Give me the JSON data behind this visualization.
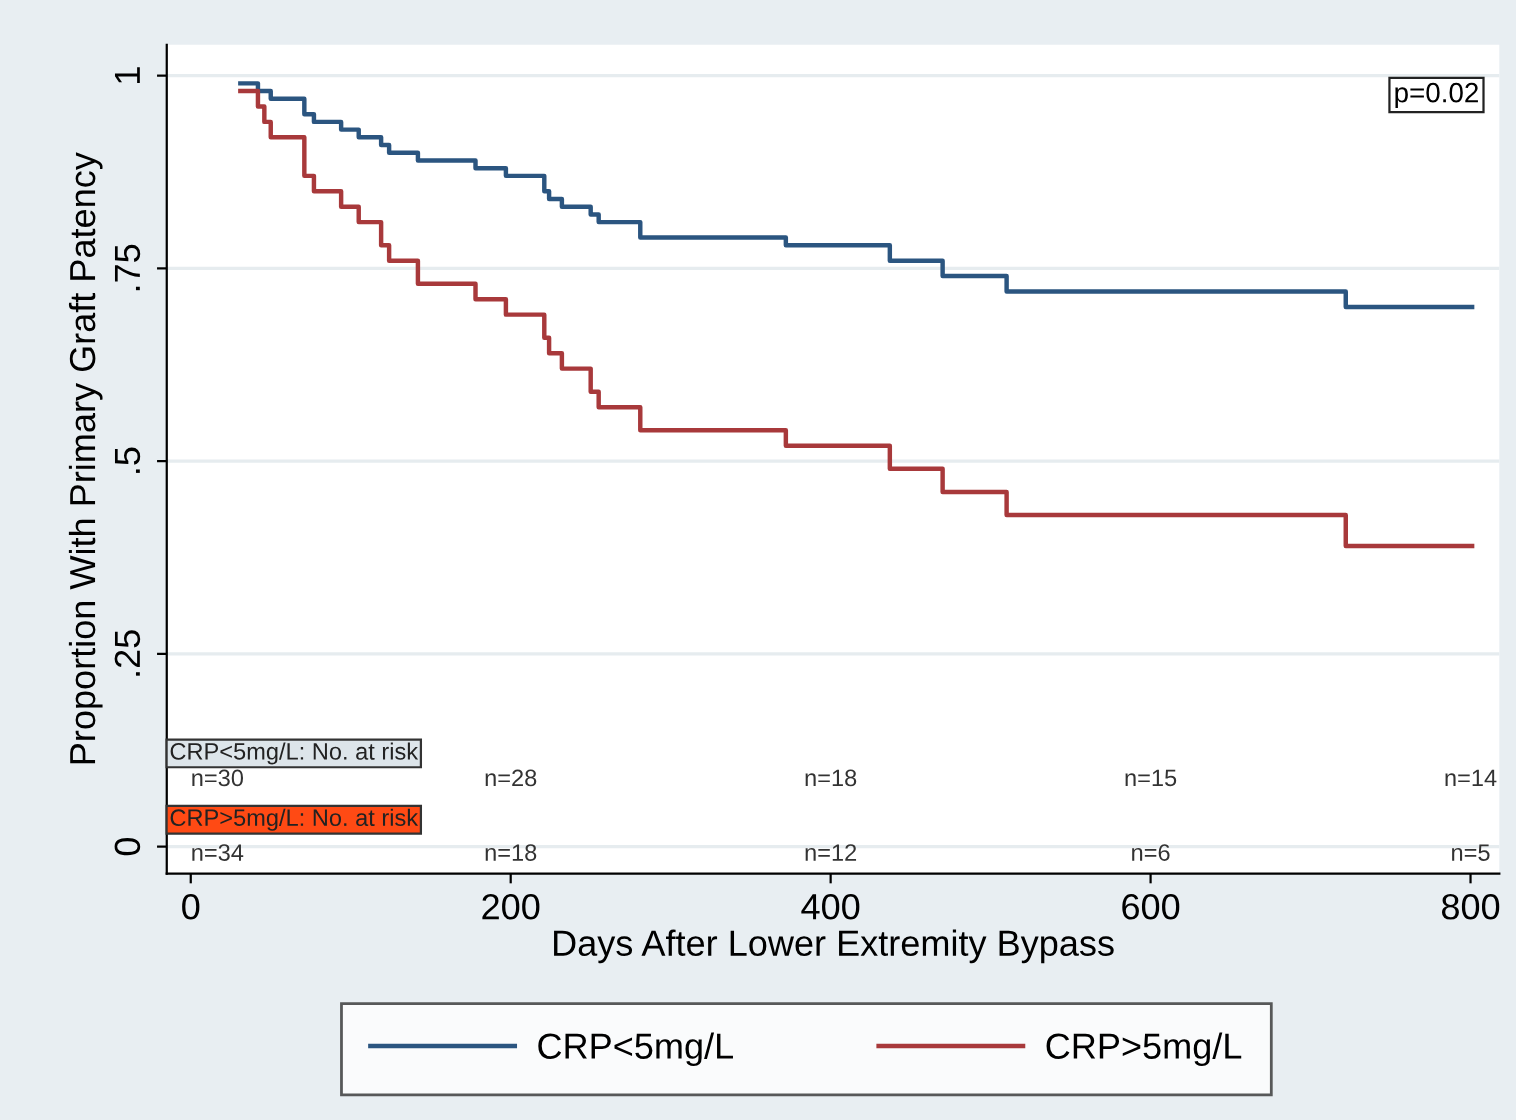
{
  "chart_data": {
    "type": "step",
    "xlabel": "Days After Lower Extremity Bypass",
    "ylabel": "Proportion With Primary Graft Patency",
    "xlim": [
      -15,
      818
    ],
    "ylim": [
      -0.035,
      1.04
    ],
    "xticks": [
      0,
      200,
      400,
      600,
      800
    ],
    "yticks": [
      {
        "value": 0,
        "label": "0"
      },
      {
        "value": 0.25,
        "label": ".25"
      },
      {
        "value": 0.5,
        "label": ".5"
      },
      {
        "value": 0.75,
        "label": ".75"
      },
      {
        "value": 1,
        "label": "1"
      }
    ],
    "grid": "y",
    "legend": "bottom",
    "line_style": "solid",
    "marker": "none",
    "series": [
      {
        "name": "CRP<5mg/L",
        "color": "#2b5580",
        "x": [
          31,
          42,
          46,
          50,
          71,
          77,
          94,
          105,
          119,
          124,
          142,
          178,
          197,
          221,
          224,
          232,
          250,
          255,
          281,
          372,
          437,
          470,
          510,
          722,
          801
        ],
        "values": [
          0.99,
          0.98,
          0.98,
          0.97,
          0.95,
          0.94,
          0.93,
          0.92,
          0.91,
          0.9,
          0.89,
          0.88,
          0.87,
          0.85,
          0.84,
          0.83,
          0.82,
          0.81,
          0.79,
          0.78,
          0.76,
          0.74,
          0.72,
          0.7,
          0.7
        ]
      },
      {
        "name": "CRP>5mg/L",
        "color": "#a8393b",
        "x": [
          31,
          42,
          46,
          50,
          71,
          77,
          94,
          105,
          119,
          124,
          142,
          178,
          197,
          221,
          224,
          232,
          250,
          255,
          281,
          372,
          437,
          470,
          510,
          722,
          801
        ],
        "values": [
          0.98,
          0.96,
          0.94,
          0.92,
          0.87,
          0.85,
          0.83,
          0.81,
          0.78,
          0.76,
          0.73,
          0.71,
          0.69,
          0.66,
          0.64,
          0.62,
          0.59,
          0.57,
          0.54,
          0.52,
          0.49,
          0.46,
          0.43,
          0.39,
          0.39
        ]
      }
    ],
    "annotations": [
      "p=0.02",
      "CRP<5mg/L: No. at risk",
      "n=30",
      "n=28",
      "n=18",
      "n=15",
      "n=14",
      "CRP>5mg/L: No. at risk",
      "n=34",
      "n=18",
      "n=12",
      "n=6",
      "n=5"
    ]
  }
}
